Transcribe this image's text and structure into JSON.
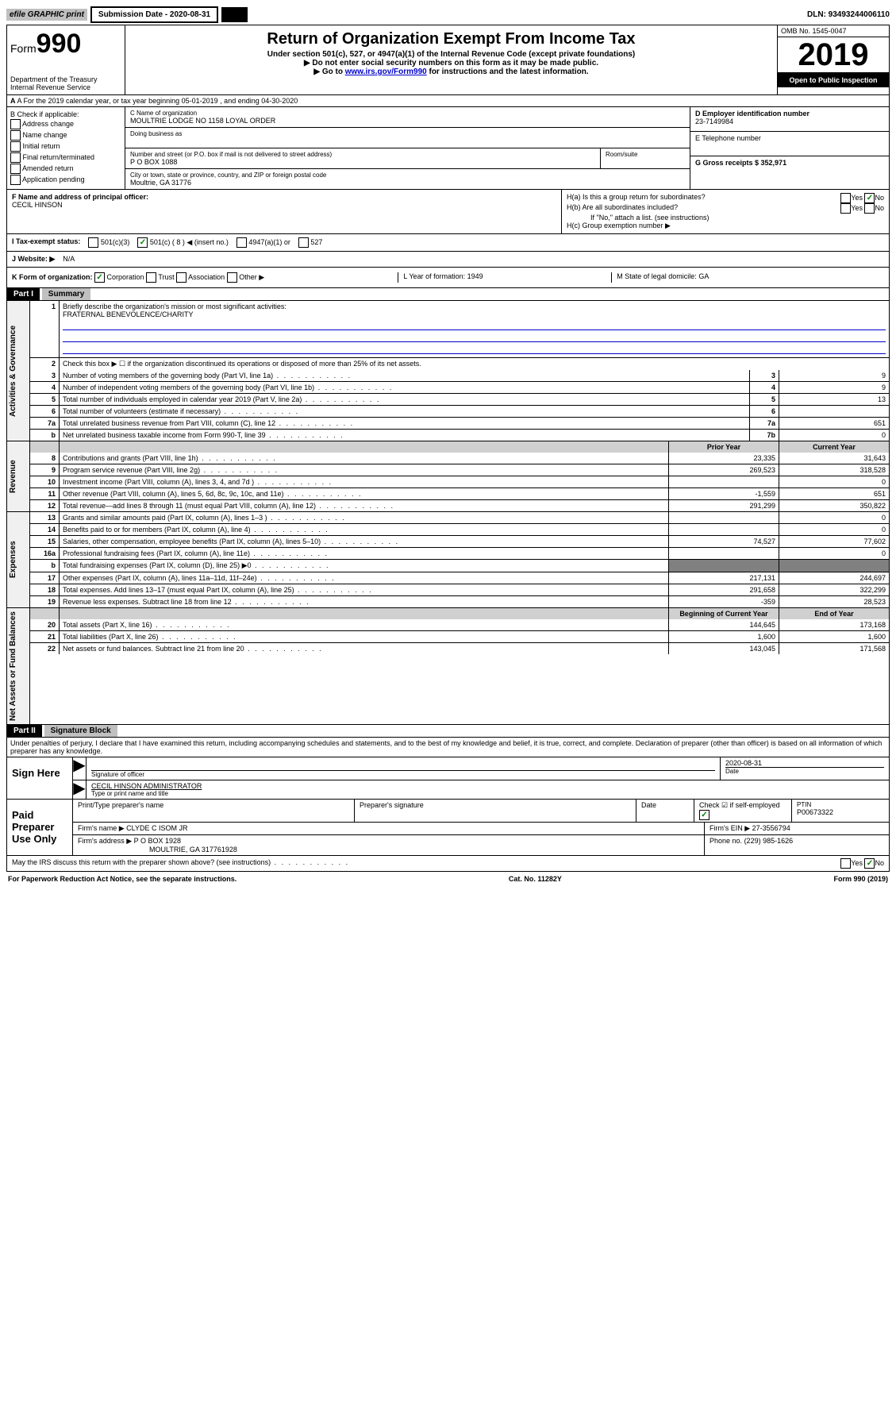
{
  "top": {
    "efile": "efile GRAPHIC print",
    "submission_label": "Submission Date - 2020-08-31",
    "dln": "DLN: 93493244006110"
  },
  "header": {
    "form_prefix": "Form",
    "form_number": "990",
    "dept": "Department of the Treasury",
    "irs": "Internal Revenue Service",
    "title": "Return of Organization Exempt From Income Tax",
    "subtitle": "Under section 501(c), 527, or 4947(a)(1) of the Internal Revenue Code (except private foundations)",
    "note1": "▶ Do not enter social security numbers on this form as it may be made public.",
    "note2_pre": "▶ Go to ",
    "note2_link": "www.irs.gov/Form990",
    "note2_post": " for instructions and the latest information.",
    "omb": "OMB No. 1545-0047",
    "year": "2019",
    "open": "Open to Public Inspection"
  },
  "row_a": "A For the 2019 calendar year, or tax year beginning 05-01-2019    , and ending 04-30-2020",
  "col_b": {
    "label": "B Check if applicable:",
    "opts": [
      "Address change",
      "Name change",
      "Initial return",
      "Final return/terminated",
      "Amended return",
      "Application pending"
    ]
  },
  "col_c": {
    "name_label": "C Name of organization",
    "name": "MOULTRIE LODGE NO 1158 LOYAL ORDER",
    "dba_label": "Doing business as",
    "addr_label": "Number and street (or P.O. box if mail is not delivered to street address)",
    "room_label": "Room/suite",
    "addr": "P O BOX 1088",
    "city_label": "City or town, state or province, country, and ZIP or foreign postal code",
    "city": "Moultrie, GA  31776",
    "f_label": "F Name and address of principal officer:",
    "f_name": "CECIL HINSON"
  },
  "col_d": {
    "d_label": "D Employer identification number",
    "ein": "23-7149984",
    "e_label": "E Telephone number",
    "g_label": "G Gross receipts $ 352,971"
  },
  "row_h": {
    "ha": "H(a)  Is this a group return for subordinates?",
    "hb": "H(b)  Are all subordinates included?",
    "hb_note": "If \"No,\" attach a list. (see instructions)",
    "hc": "H(c)  Group exemption number ▶",
    "yes": "Yes",
    "no": "No"
  },
  "row_i": {
    "label": "I    Tax-exempt status:",
    "o1": "501(c)(3)",
    "o2": "501(c) ( 8 ) ◀ (insert no.)",
    "o3": "4947(a)(1) or",
    "o4": "527"
  },
  "row_j": {
    "label": "J   Website: ▶",
    "val": "N/A"
  },
  "row_k": {
    "label": "K Form of organization:",
    "corp": "Corporation",
    "trust": "Trust",
    "assoc": "Association",
    "other": "Other ▶"
  },
  "row_l": {
    "label": "L Year of formation: 1949"
  },
  "row_m": {
    "label": "M State of legal domicile: GA"
  },
  "part1": {
    "num": "Part I",
    "title": "Summary"
  },
  "summary": {
    "l1_label": "Briefly describe the organization's mission or most significant activities:",
    "l1_val": "FRATERNAL BENEVOLENCE/CHARITY",
    "l2": "Check this box ▶ ☐  if the organization discontinued its operations or disposed of more than 25% of its net assets.",
    "rows_top": [
      {
        "n": "3",
        "t": "Number of voting members of the governing body (Part VI, line 1a)",
        "k": "3",
        "v": "9"
      },
      {
        "n": "4",
        "t": "Number of independent voting members of the governing body (Part VI, line 1b)",
        "k": "4",
        "v": "9"
      },
      {
        "n": "5",
        "t": "Total number of individuals employed in calendar year 2019 (Part V, line 2a)",
        "k": "5",
        "v": "13"
      },
      {
        "n": "6",
        "t": "Total number of volunteers (estimate if necessary)",
        "k": "6",
        "v": ""
      },
      {
        "n": "7a",
        "t": "Total unrelated business revenue from Part VIII, column (C), line 12",
        "k": "7a",
        "v": "651"
      },
      {
        "n": "b",
        "t": "Net unrelated business taxable income from Form 990-T, line 39",
        "k": "7b",
        "v": "0"
      }
    ],
    "header_prior": "Prior Year",
    "header_current": "Current Year",
    "revenue": [
      {
        "n": "8",
        "t": "Contributions and grants (Part VIII, line 1h)",
        "p": "23,335",
        "c": "31,643"
      },
      {
        "n": "9",
        "t": "Program service revenue (Part VIII, line 2g)",
        "p": "269,523",
        "c": "318,528"
      },
      {
        "n": "10",
        "t": "Investment income (Part VIII, column (A), lines 3, 4, and 7d )",
        "p": "",
        "c": "0"
      },
      {
        "n": "11",
        "t": "Other revenue (Part VIII, column (A), lines 5, 6d, 8c, 9c, 10c, and 11e)",
        "p": "-1,559",
        "c": "651"
      },
      {
        "n": "12",
        "t": "Total revenue—add lines 8 through 11 (must equal Part VIII, column (A), line 12)",
        "p": "291,299",
        "c": "350,822"
      }
    ],
    "expenses": [
      {
        "n": "13",
        "t": "Grants and similar amounts paid (Part IX, column (A), lines 1–3 )",
        "p": "",
        "c": "0"
      },
      {
        "n": "14",
        "t": "Benefits paid to or for members (Part IX, column (A), line 4)",
        "p": "",
        "c": "0"
      },
      {
        "n": "15",
        "t": "Salaries, other compensation, employee benefits (Part IX, column (A), lines 5–10)",
        "p": "74,527",
        "c": "77,602"
      },
      {
        "n": "16a",
        "t": "Professional fundraising fees (Part IX, column (A), line 11e)",
        "p": "",
        "c": "0"
      },
      {
        "n": "b",
        "t": "Total fundraising expenses (Part IX, column (D), line 25) ▶0",
        "p": "GREY",
        "c": "GREY"
      },
      {
        "n": "17",
        "t": "Other expenses (Part IX, column (A), lines 11a–11d, 11f–24e)",
        "p": "217,131",
        "c": "244,697"
      },
      {
        "n": "18",
        "t": "Total expenses. Add lines 13–17 (must equal Part IX, column (A), line 25)",
        "p": "291,658",
        "c": "322,299"
      },
      {
        "n": "19",
        "t": "Revenue less expenses. Subtract line 18 from line 12",
        "p": "-359",
        "c": "28,523"
      }
    ],
    "header_begin": "Beginning of Current Year",
    "header_end": "End of Year",
    "net": [
      {
        "n": "20",
        "t": "Total assets (Part X, line 16)",
        "p": "144,645",
        "c": "173,168"
      },
      {
        "n": "21",
        "t": "Total liabilities (Part X, line 26)",
        "p": "1,600",
        "c": "1,600"
      },
      {
        "n": "22",
        "t": "Net assets or fund balances. Subtract line 21 from line 20",
        "p": "143,045",
        "c": "171,568"
      }
    ]
  },
  "side_labels": {
    "gov": "Activities & Governance",
    "rev": "Revenue",
    "exp": "Expenses",
    "net": "Net Assets or Fund Balances"
  },
  "part2": {
    "num": "Part II",
    "title": "Signature Block"
  },
  "sig_text": "Under penalties of perjury, I declare that I have examined this return, including accompanying schedules and statements, and to the best of my knowledge and belief, it is true, correct, and complete. Declaration of preparer (other than officer) is based on all information of which preparer has any knowledge.",
  "sign_here": {
    "label": "Sign Here",
    "date": "2020-08-31",
    "date_label": "Date",
    "sig_label": "Signature of officer",
    "name": "CECIL HINSON  ADMINISTRATOR",
    "name_label": "Type or print name and title"
  },
  "paid": {
    "label": "Paid Preparer Use Only",
    "h1": "Print/Type preparer's name",
    "h2": "Preparer's signature",
    "h3": "Date",
    "h4": "Check ☑ if self-employed",
    "h5": "PTIN",
    "ptin": "P00673322",
    "firm_name_label": "Firm's name    ▶",
    "firm_name": "CLYDE C ISOM JR",
    "firm_ein_label": "Firm's EIN ▶",
    "firm_ein": "27-3556794",
    "firm_addr_label": "Firm's address ▶",
    "firm_addr": "P O BOX 1928",
    "firm_addr2": "MOULTRIE, GA  317761928",
    "phone_label": "Phone no.",
    "phone": "(229) 985-1626"
  },
  "discuss": "May the IRS discuss this return with the preparer shown above? (see instructions)",
  "footer": {
    "left": "For Paperwork Reduction Act Notice, see the separate instructions.",
    "mid": "Cat. No. 11282Y",
    "right": "Form 990 (2019)"
  }
}
